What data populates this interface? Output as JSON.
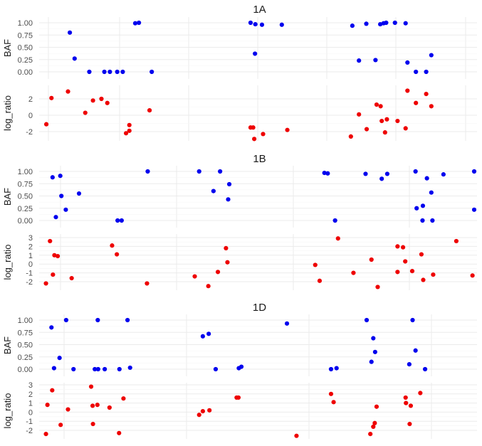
{
  "colors": {
    "baf": "#0000ee",
    "log_ratio": "#ee0000",
    "grid_major": "#ebebeb",
    "grid_minor": "#f5f5f5",
    "axis_text": "#4d4d4d",
    "title_text": "#1a1a1a"
  },
  "chart_data": [
    {
      "type": "scatter",
      "title": "1A",
      "panels": [
        {
          "ylabel": "BAF",
          "ylim": [
            -0.05,
            1.05
          ],
          "yticks": [
            0,
            0.25,
            0.5,
            0.75,
            1
          ],
          "ytick_labels": [
            "0.00",
            "0.25",
            "0.50",
            "0.75",
            "1.00"
          ],
          "color": "#0000ee",
          "points": [
            {
              "x": 0.068,
              "y": 0.8
            },
            {
              "x": 0.081,
              "y": 0.27
            },
            {
              "x": 0.121,
              "y": 0.0
            },
            {
              "x": 0.162,
              "y": 0.0
            },
            {
              "x": 0.177,
              "y": 0.0
            },
            {
              "x": 0.197,
              "y": 0.0
            },
            {
              "x": 0.212,
              "y": 0.0
            },
            {
              "x": 0.246,
              "y": 0.99
            },
            {
              "x": 0.256,
              "y": 1.0
            },
            {
              "x": 0.291,
              "y": 0.0
            },
            {
              "x": 0.56,
              "y": 1.0
            },
            {
              "x": 0.572,
              "y": 0.37
            },
            {
              "x": 0.573,
              "y": 0.97
            },
            {
              "x": 0.591,
              "y": 0.96
            },
            {
              "x": 0.645,
              "y": 0.96
            },
            {
              "x": 0.837,
              "y": 0.94
            },
            {
              "x": 0.855,
              "y": 0.23
            },
            {
              "x": 0.875,
              "y": 0.98
            },
            {
              "x": 0.9,
              "y": 0.24
            },
            {
              "x": 0.913,
              "y": 0.97
            },
            {
              "x": 0.922,
              "y": 0.99
            },
            {
              "x": 0.929,
              "y": 1.0
            },
            {
              "x": 0.953,
              "y": 1.0
            },
            {
              "x": 0.982,
              "y": 0.99
            },
            {
              "x": 0.987,
              "y": 0.19
            },
            {
              "x": 1.01,
              "y": 0.0
            },
            {
              "x": 1.038,
              "y": 0.0
            },
            {
              "x": 1.052,
              "y": 0.34
            }
          ]
        },
        {
          "ylabel": "log_ratio",
          "ylim": [
            -3.2,
            3.4
          ],
          "yticks": [
            -2,
            0,
            2
          ],
          "ytick_labels": [
            "-2",
            "0",
            "2"
          ],
          "color": "#ee0000",
          "points": [
            {
              "x": 0.004,
              "y": -1.1
            },
            {
              "x": 0.018,
              "y": 2.1
            },
            {
              "x": 0.063,
              "y": 2.9
            },
            {
              "x": 0.11,
              "y": 0.3
            },
            {
              "x": 0.131,
              "y": 1.8
            },
            {
              "x": 0.154,
              "y": 2.0
            },
            {
              "x": 0.17,
              "y": 1.5
            },
            {
              "x": 0.221,
              "y": -2.2
            },
            {
              "x": 0.23,
              "y": -1.2
            },
            {
              "x": 0.23,
              "y": -1.9
            },
            {
              "x": 0.285,
              "y": 0.6
            },
            {
              "x": 0.56,
              "y": -1.5
            },
            {
              "x": 0.567,
              "y": -1.5
            },
            {
              "x": 0.57,
              "y": -2.9
            },
            {
              "x": 0.594,
              "y": -2.3
            },
            {
              "x": 0.66,
              "y": -1.8
            },
            {
              "x": 0.833,
              "y": -2.6
            },
            {
              "x": 0.855,
              "y": 0.1
            },
            {
              "x": 0.876,
              "y": -1.7
            },
            {
              "x": 0.903,
              "y": 1.3
            },
            {
              "x": 0.914,
              "y": 1.1
            },
            {
              "x": 0.917,
              "y": -0.7
            },
            {
              "x": 0.926,
              "y": -2.1
            },
            {
              "x": 0.931,
              "y": -0.5
            },
            {
              "x": 0.96,
              "y": -0.7
            },
            {
              "x": 0.982,
              "y": -1.6
            },
            {
              "x": 0.987,
              "y": 3.0
            },
            {
              "x": 1.01,
              "y": 1.5
            },
            {
              "x": 1.038,
              "y": 2.6
            },
            {
              "x": 1.052,
              "y": 1.1
            }
          ]
        }
      ]
    },
    {
      "type": "scatter",
      "title": "1B",
      "panels": [
        {
          "ylabel": "BAF",
          "ylim": [
            -0.05,
            1.05
          ],
          "yticks": [
            0,
            0.25,
            0.5,
            0.75,
            1
          ],
          "ytick_labels": [
            "0.00",
            "0.25",
            "0.50",
            "0.75",
            "1.00"
          ],
          "color": "#0000ee",
          "points": [
            {
              "x": 0.021,
              "y": 0.88
            },
            {
              "x": 0.042,
              "y": 0.91
            },
            {
              "x": 0.045,
              "y": 0.5
            },
            {
              "x": 0.057,
              "y": 0.22
            },
            {
              "x": 0.093,
              "y": 0.55
            },
            {
              "x": 0.03,
              "y": 0.07
            },
            {
              "x": 0.198,
              "y": 0.0
            },
            {
              "x": 0.209,
              "y": 0.0
            },
            {
              "x": 0.28,
              "y": 1.0
            },
            {
              "x": 0.42,
              "y": 1.0
            },
            {
              "x": 0.459,
              "y": 0.6
            },
            {
              "x": 0.477,
              "y": 1.0
            },
            {
              "x": 0.502,
              "y": 0.74
            },
            {
              "x": 0.499,
              "y": 0.43
            },
            {
              "x": 0.761,
              "y": 0.97
            },
            {
              "x": 0.77,
              "y": 0.96
            },
            {
              "x": 0.79,
              "y": 0.0
            },
            {
              "x": 0.873,
              "y": 0.95
            },
            {
              "x": 0.917,
              "y": 0.85
            },
            {
              "x": 0.932,
              "y": 0.95
            },
            {
              "x": 1.009,
              "y": 1.0
            },
            {
              "x": 1.012,
              "y": 0.25
            },
            {
              "x": 1.028,
              "y": 0.0
            },
            {
              "x": 1.029,
              "y": 0.3
            },
            {
              "x": 1.04,
              "y": 0.86
            },
            {
              "x": 1.052,
              "y": 0.57
            },
            {
              "x": 1.055,
              "y": 0.0
            },
            {
              "x": 1.085,
              "y": 0.94
            },
            {
              "x": 1.21,
              "y": 0.22
            },
            {
              "x": 1.242,
              "y": 1.0
            }
          ]
        },
        {
          "ylabel": "log_ratio",
          "ylim": [
            -3.0,
            3.5
          ],
          "yticks": [
            -2,
            -1,
            0,
            1,
            2,
            3
          ],
          "ytick_labels": [
            "-2",
            "-1",
            "0",
            "1",
            "2",
            "3"
          ],
          "color": "#ee0000",
          "points": [
            {
              "x": 0.003,
              "y": -2.2
            },
            {
              "x": 0.014,
              "y": 2.6
            },
            {
              "x": 0.022,
              "y": -1.2
            },
            {
              "x": 0.026,
              "y": 1.0
            },
            {
              "x": 0.035,
              "y": 0.9
            },
            {
              "x": 0.073,
              "y": -1.6
            },
            {
              "x": 0.183,
              "y": 2.1
            },
            {
              "x": 0.196,
              "y": 1.1
            },
            {
              "x": 0.278,
              "y": -2.2
            },
            {
              "x": 0.408,
              "y": -1.4
            },
            {
              "x": 0.445,
              "y": -2.5
            },
            {
              "x": 0.471,
              "y": -0.9
            },
            {
              "x": 0.493,
              "y": 1.8
            },
            {
              "x": 0.497,
              "y": 0.2
            },
            {
              "x": 0.736,
              "y": -0.1
            },
            {
              "x": 0.748,
              "y": -1.9
            },
            {
              "x": 0.798,
              "y": 2.9
            },
            {
              "x": 0.84,
              "y": -1.0
            },
            {
              "x": 0.889,
              "y": 0.5
            },
            {
              "x": 0.906,
              "y": -2.6
            },
            {
              "x": 0.96,
              "y": 2.0
            },
            {
              "x": 0.96,
              "y": -0.9
            },
            {
              "x": 0.975,
              "y": 1.9
            },
            {
              "x": 0.981,
              "y": 0.3
            },
            {
              "x": 1.0,
              "y": -0.8
            },
            {
              "x": 1.025,
              "y": 1.1
            },
            {
              "x": 1.03,
              "y": -1.8
            },
            {
              "x": 1.057,
              "y": -1.2
            },
            {
              "x": 1.12,
              "y": 2.6
            },
            {
              "x": 1.164,
              "y": -1.3
            }
          ]
        }
      ]
    },
    {
      "type": "scatter",
      "title": "1D",
      "panels": [
        {
          "ylabel": "BAF",
          "ylim": [
            -0.05,
            1.05
          ],
          "yticks": [
            0,
            0.25,
            0.5,
            0.75,
            1
          ],
          "ytick_labels": [
            "0.00",
            "0.25",
            "0.50",
            "0.75",
            "1.00"
          ],
          "color": "#0000ee",
          "points": [
            {
              "x": 0.018,
              "y": 0.85
            },
            {
              "x": 0.025,
              "y": 0.02
            },
            {
              "x": 0.04,
              "y": 0.23
            },
            {
              "x": 0.058,
              "y": 1.0
            },
            {
              "x": 0.078,
              "y": 0.0
            },
            {
              "x": 0.136,
              "y": 0.0
            },
            {
              "x": 0.144,
              "y": 1.0
            },
            {
              "x": 0.145,
              "y": 0.0
            },
            {
              "x": 0.163,
              "y": 0.0
            },
            {
              "x": 0.203,
              "y": 0.0
            },
            {
              "x": 0.225,
              "y": 1.0
            },
            {
              "x": 0.232,
              "y": 0.03
            },
            {
              "x": 0.43,
              "y": 0.67
            },
            {
              "x": 0.446,
              "y": 0.72
            },
            {
              "x": 0.465,
              "y": 0.0
            },
            {
              "x": 0.528,
              "y": 0.02
            },
            {
              "x": 0.535,
              "y": 0.05
            },
            {
              "x": 0.659,
              "y": 0.93
            },
            {
              "x": 0.779,
              "y": 0.0
            },
            {
              "x": 0.794,
              "y": 0.02
            },
            {
              "x": 0.876,
              "y": 1.0
            },
            {
              "x": 0.889,
              "y": 0.15
            },
            {
              "x": 0.894,
              "y": 0.63
            },
            {
              "x": 0.899,
              "y": 0.35
            },
            {
              "x": 0.992,
              "y": 0.1
            },
            {
              "x": 1.001,
              "y": 1.0
            },
            {
              "x": 1.009,
              "y": 0.38
            },
            {
              "x": 1.035,
              "y": 0.0
            }
          ]
        },
        {
          "ylabel": "log_ratio",
          "ylim": [
            -2.9,
            3.6
          ],
          "yticks": [
            -2,
            -1,
            0,
            1,
            2,
            3
          ],
          "ytick_labels": [
            "-2",
            "-1",
            "0",
            "1",
            "2",
            "3"
          ],
          "color": "#ee0000",
          "points": [
            {
              "x": 0.003,
              "y": -2.4
            },
            {
              "x": 0.007,
              "y": 0.8
            },
            {
              "x": 0.02,
              "y": 2.4
            },
            {
              "x": 0.043,
              "y": -1.4
            },
            {
              "x": 0.063,
              "y": 0.3
            },
            {
              "x": 0.126,
              "y": 2.8
            },
            {
              "x": 0.13,
              "y": 0.7
            },
            {
              "x": 0.131,
              "y": -1.3
            },
            {
              "x": 0.143,
              "y": 0.8
            },
            {
              "x": 0.176,
              "y": 0.5
            },
            {
              "x": 0.202,
              "y": -2.3
            },
            {
              "x": 0.214,
              "y": 1.5
            },
            {
              "x": 0.42,
              "y": -0.3
            },
            {
              "x": 0.43,
              "y": 0.1
            },
            {
              "x": 0.448,
              "y": 0.2
            },
            {
              "x": 0.522,
              "y": 1.6
            },
            {
              "x": 0.527,
              "y": 1.6
            },
            {
              "x": 0.685,
              "y": -2.6
            },
            {
              "x": 0.779,
              "y": 2.0
            },
            {
              "x": 0.786,
              "y": 1.1
            },
            {
              "x": 0.886,
              "y": -2.4
            },
            {
              "x": 0.894,
              "y": -1.6
            },
            {
              "x": 0.898,
              "y": -1.2
            },
            {
              "x": 0.903,
              "y": 0.6
            },
            {
              "x": 0.982,
              "y": 1.6
            },
            {
              "x": 0.983,
              "y": 1.0
            },
            {
              "x": 0.993,
              "y": -1.3
            },
            {
              "x": 0.996,
              "y": 0.7
            },
            {
              "x": 1.022,
              "y": 2.1
            }
          ]
        }
      ]
    }
  ]
}
